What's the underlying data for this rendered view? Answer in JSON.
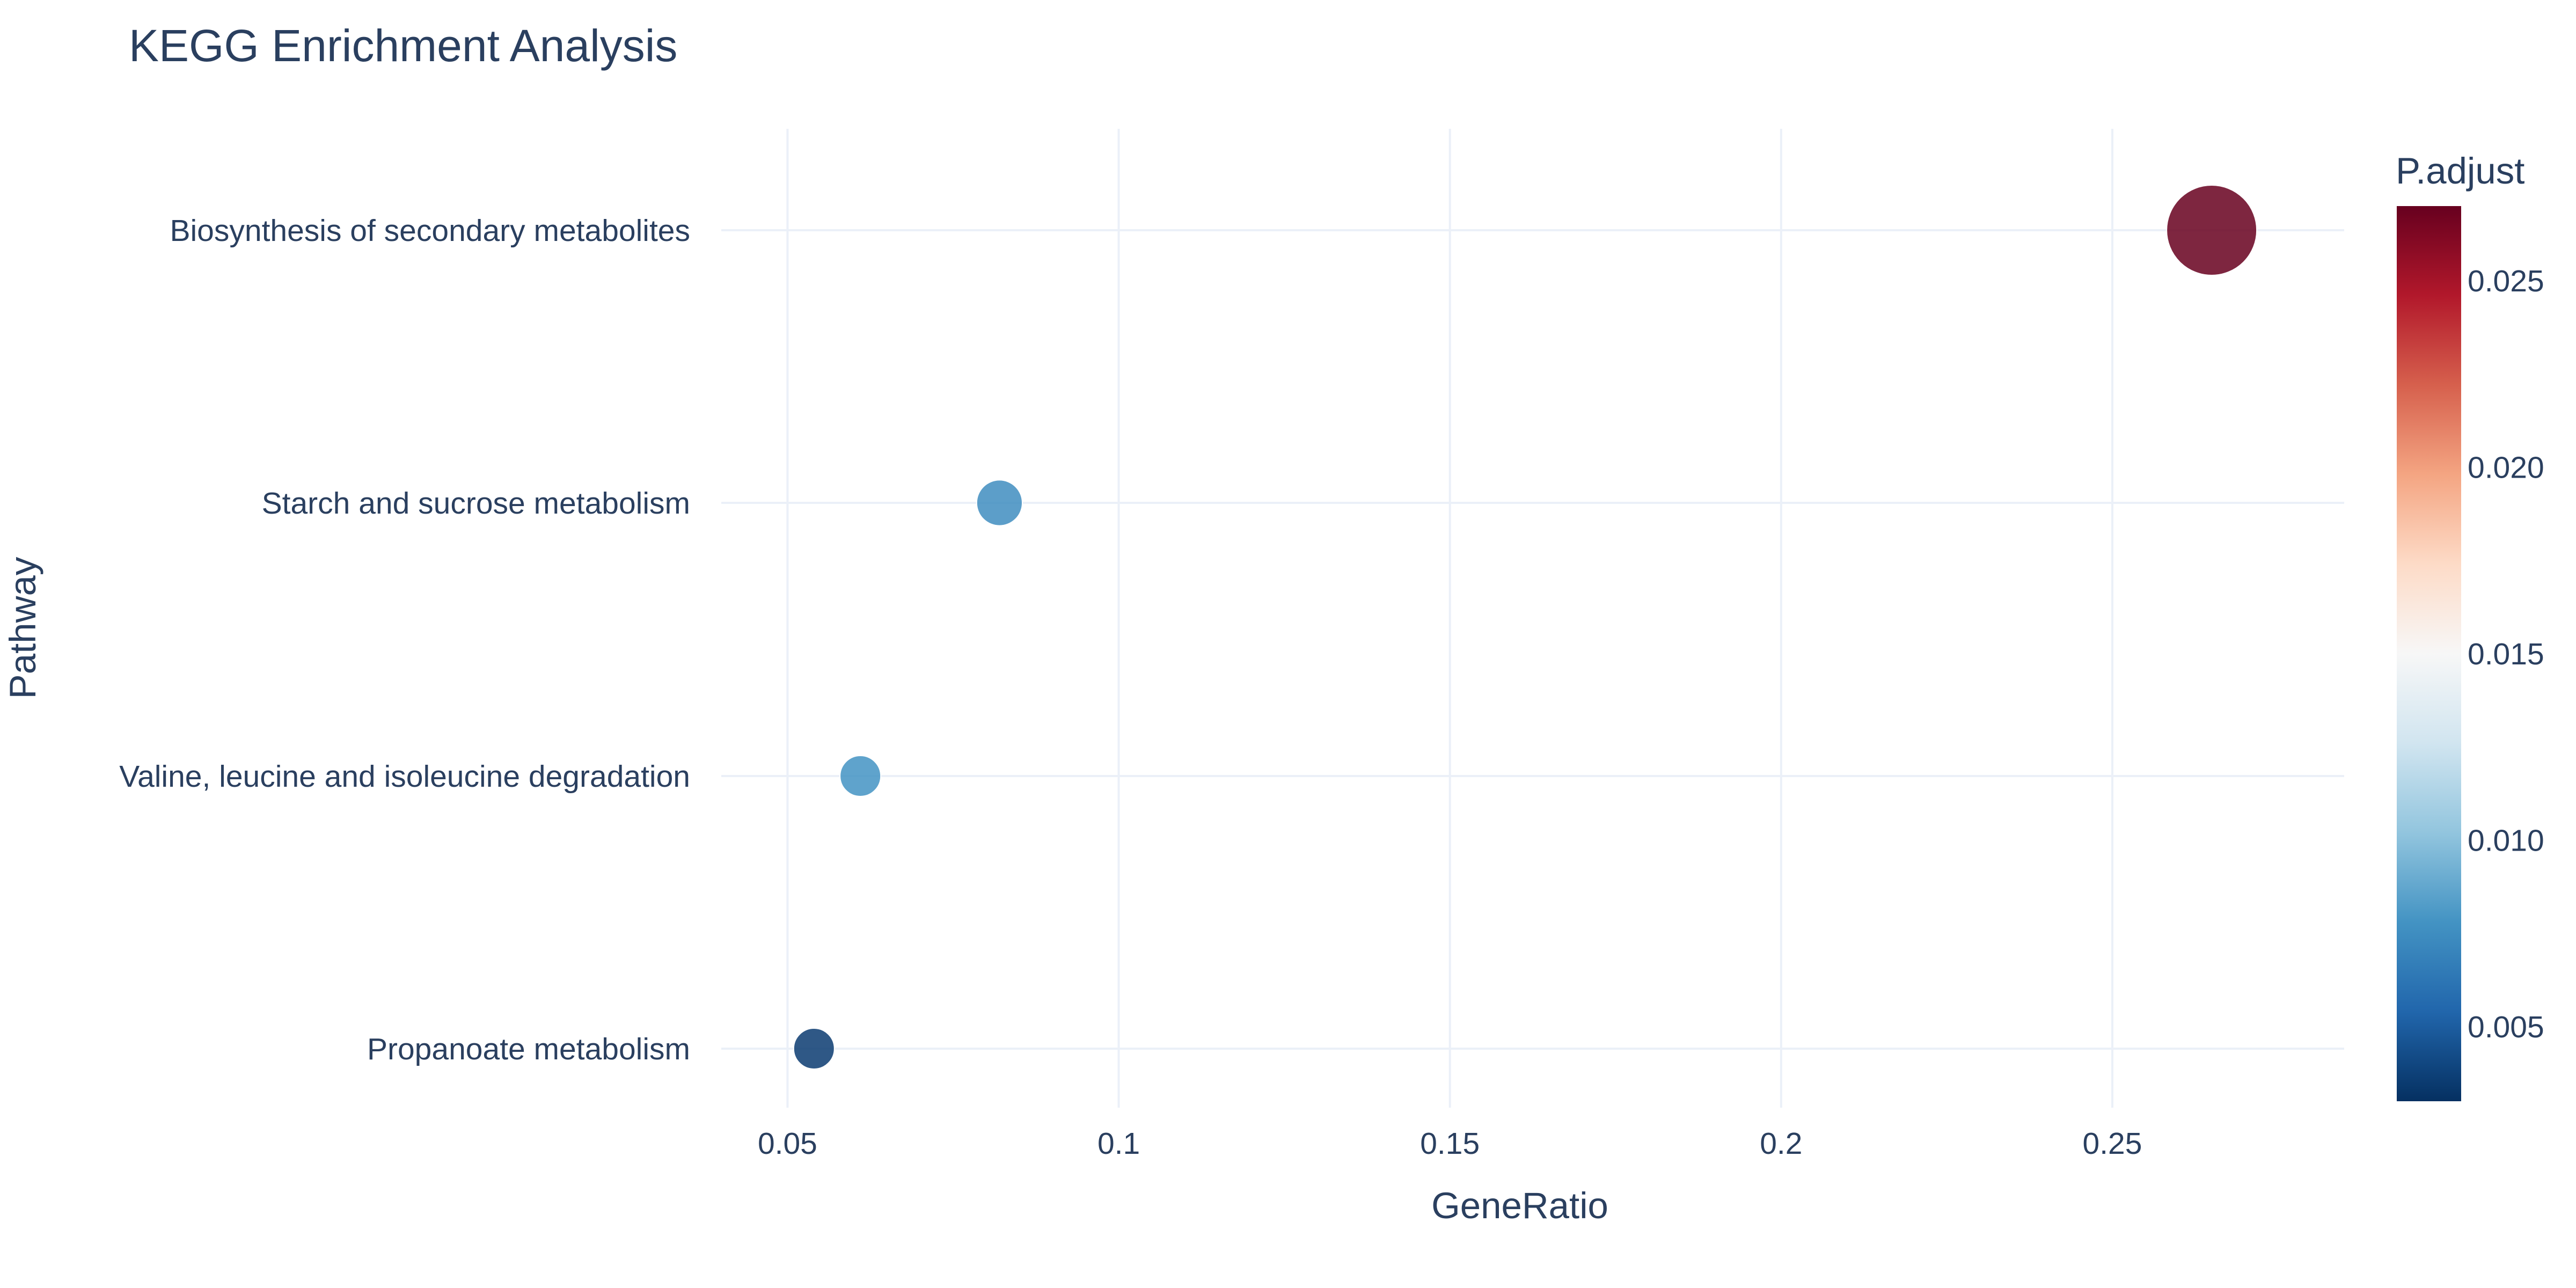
{
  "chart_data": {
    "type": "scatter",
    "title": "KEGG Enrichment Analysis",
    "xlabel": "GeneRatio",
    "ylabel": "Pathway",
    "xlim": [
      0.04,
      0.285
    ],
    "x_ticks": [
      "0.05",
      "0.1",
      "0.15",
      "0.2",
      "0.25"
    ],
    "x_tick_values": [
      0.05,
      0.1,
      0.15,
      0.2,
      0.25
    ],
    "grid": true,
    "legend": "none",
    "categories": [
      "Biosynthesis of secondary metabolites",
      "Starch and sucrose metabolism",
      "Valine, leucine and isoleucine degradation",
      "Propanoate metabolism"
    ],
    "points": [
      {
        "pathway": "Biosynthesis of secondary metabolites",
        "gene_ratio": 0.265,
        "p_adjust": 0.027,
        "count": 13
      },
      {
        "pathway": "Starch and sucrose metabolism",
        "gene_ratio": 0.082,
        "p_adjust": 0.0075,
        "count": 4
      },
      {
        "pathway": "Valine, leucine and isoleucine degradation",
        "gene_ratio": 0.061,
        "p_adjust": 0.0078,
        "count": 3
      },
      {
        "pathway": "Propanoate metabolism",
        "gene_ratio": 0.054,
        "p_adjust": 0.0035,
        "count": 3
      }
    ],
    "colorbar": {
      "title": "P.adjust",
      "range": [
        0.003,
        0.027
      ],
      "ticks": [
        "0.025",
        "0.020",
        "0.015",
        "0.010",
        "0.005"
      ],
      "tick_values": [
        0.025,
        0.02,
        0.015,
        0.01,
        0.005
      ],
      "colorscale": [
        "#053061",
        "#2166ac",
        "#4393c3",
        "#92c5de",
        "#d1e5f0",
        "#f7f7f7",
        "#fddbc7",
        "#f4a582",
        "#d6604d",
        "#b2182b",
        "#67001f"
      ]
    }
  }
}
